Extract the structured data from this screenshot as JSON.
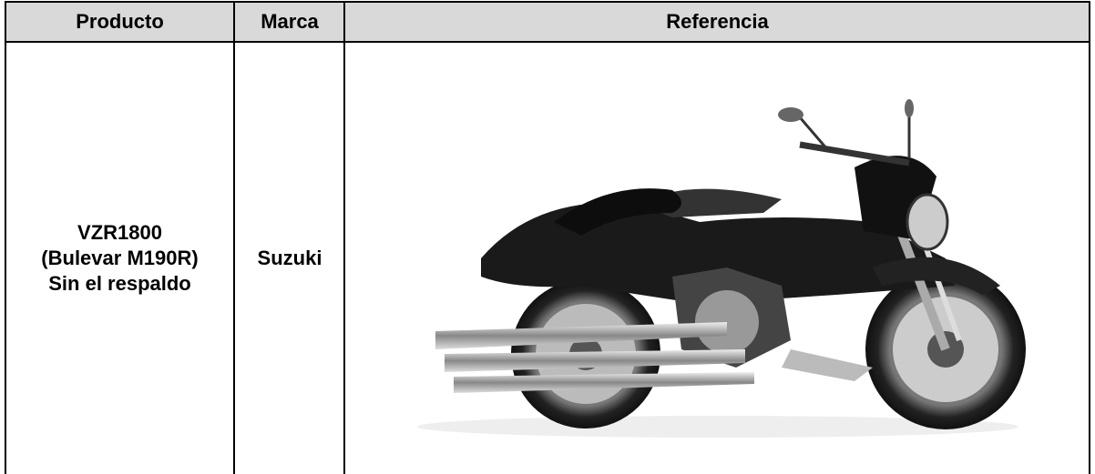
{
  "table": {
    "headers": [
      "Producto",
      "Marca",
      "Referencia"
    ],
    "rows": [
      {
        "producto": [
          "VZR1800",
          "(Bulevar M190R)",
          "Sin el respaldo"
        ],
        "marca": "Suzuki"
      }
    ]
  }
}
